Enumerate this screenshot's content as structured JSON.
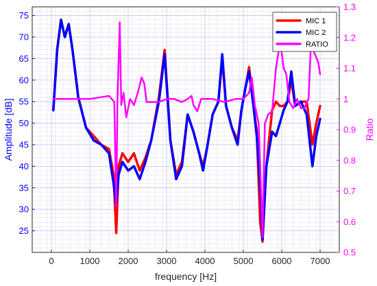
{
  "chart_data": {
    "type": "line",
    "xlabel": "frequency [Hz]",
    "ylabel_left": "Amplitude   [dB]",
    "ylabel_right": "Ratio",
    "xlim": [
      -500,
      7500
    ],
    "ylim_left": [
      20,
      77
    ],
    "ylim_right": [
      0.5,
      1.3
    ],
    "x_ticks": [
      0,
      1000,
      2000,
      3000,
      4000,
      5000,
      6000,
      7000
    ],
    "y_left_ticks": [
      25,
      30,
      35,
      40,
      45,
      50,
      55,
      60,
      65,
      70,
      75
    ],
    "y_right_ticks": [
      0.5,
      0.6,
      0.7,
      0.8,
      0.9,
      1,
      1.1,
      1.2,
      1.3
    ],
    "x_tick_labels": [
      "0",
      "1000",
      "2000",
      "3000",
      "4000",
      "5000",
      "6000",
      "7000"
    ],
    "y_left_tick_labels": [
      "25",
      "30",
      "35",
      "40",
      "45",
      "50",
      "55",
      "60",
      "65",
      "70",
      "75"
    ],
    "y_right_tick_labels": [
      "0.5",
      "0.6",
      "0.7",
      "0.8",
      "0.9",
      "1",
      "1.1",
      "1.2",
      "1.3"
    ],
    "grid": "on (major and minor)",
    "legend_position": "top-right",
    "series": [
      {
        "name": "MIC 1",
        "axis": "left",
        "color": "#ff0000",
        "x": [
          50,
          150,
          250,
          350,
          450,
          550,
          700,
          900,
          1100,
          1300,
          1500,
          1620,
          1690,
          1750,
          1850,
          2000,
          2150,
          2300,
          2450,
          2600,
          2800,
          2950,
          3100,
          3250,
          3400,
          3550,
          3700,
          3850,
          3950,
          4050,
          4200,
          4350,
          4450,
          4550,
          4700,
          4850,
          4950,
          5050,
          5150,
          5250,
          5350,
          5440,
          5500,
          5600,
          5750,
          5850,
          5950,
          6050,
          6150,
          6250,
          6350,
          6500,
          6650,
          6800,
          6900,
          7000
        ],
        "y": [
          53,
          67,
          74,
          70,
          73,
          67,
          56,
          49,
          47,
          45,
          44,
          38,
          24.5,
          40,
          43,
          41,
          43,
          39,
          42,
          46,
          56,
          67,
          46,
          38,
          41,
          52,
          48,
          43,
          40,
          44,
          52,
          55,
          65,
          54,
          49,
          46,
          53,
          58,
          63,
          55,
          48,
          27,
          22.5,
          40,
          53,
          55,
          54,
          54,
          55,
          60,
          54,
          55,
          55,
          45,
          50,
          54
        ]
      },
      {
        "name": "MIC 2",
        "axis": "left",
        "color": "#0000ff",
        "x": [
          50,
          150,
          250,
          350,
          450,
          550,
          700,
          900,
          1100,
          1300,
          1500,
          1620,
          1690,
          1750,
          1850,
          2000,
          2150,
          2300,
          2450,
          2600,
          2800,
          2950,
          3100,
          3250,
          3400,
          3550,
          3700,
          3850,
          3950,
          4050,
          4200,
          4350,
          4450,
          4550,
          4700,
          4850,
          4950,
          5050,
          5150,
          5250,
          5350,
          5440,
          5500,
          5600,
          5750,
          5850,
          5950,
          6050,
          6150,
          6250,
          6350,
          6500,
          6650,
          6800,
          6900,
          7000
        ],
        "y": [
          53,
          67,
          74,
          70,
          73,
          67,
          56,
          49,
          46,
          45,
          43,
          36,
          31,
          38,
          41,
          39,
          40,
          37,
          41,
          46,
          55,
          66,
          46,
          37,
          40,
          52,
          48,
          43,
          39,
          44,
          52,
          55,
          66,
          54,
          49,
          45,
          53,
          58,
          62,
          55,
          47,
          35,
          23,
          40,
          48,
          47,
          50,
          53,
          55,
          62,
          54,
          55,
          52,
          40,
          47,
          51
        ]
      },
      {
        "name": "RATIO",
        "axis": "right",
        "color": "#ff00ff",
        "x": [
          50,
          500,
          1000,
          1500,
          1640,
          1690,
          1720,
          1780,
          1820,
          1880,
          1950,
          2050,
          2150,
          2250,
          2350,
          2420,
          2480,
          2600,
          2800,
          3000,
          3200,
          3400,
          3550,
          3650,
          3700,
          3800,
          3900,
          4000,
          4200,
          4500,
          4800,
          5000,
          5150,
          5220,
          5300,
          5400,
          5460,
          5500,
          5560,
          5650,
          5750,
          5850,
          5950,
          6000,
          6050,
          6120,
          6200,
          6300,
          6400,
          6500,
          6600,
          6650,
          6700,
          6760,
          6850,
          6950,
          7000
        ],
        "y": [
          1,
          1,
          1,
          1.01,
          0.99,
          0.65,
          0.99,
          1.25,
          0.98,
          1.02,
          0.94,
          1,
          0.98,
          1.02,
          1.07,
          1.05,
          0.99,
          0.99,
          0.99,
          1,
          1,
          0.99,
          1,
          1.01,
          0.98,
          0.96,
          1,
          1,
          1,
          0.99,
          1,
          1,
          1.02,
          1.07,
          0.98,
          0.92,
          0.7,
          0.55,
          0.92,
          0.95,
          0.96,
          1.1,
          1.18,
          1.15,
          1.1,
          1.08,
          0.99,
          0.97,
          1,
          0.97,
          0.97,
          0.99,
          1,
          1.18,
          1.15,
          1.12,
          1.08
        ]
      }
    ]
  }
}
